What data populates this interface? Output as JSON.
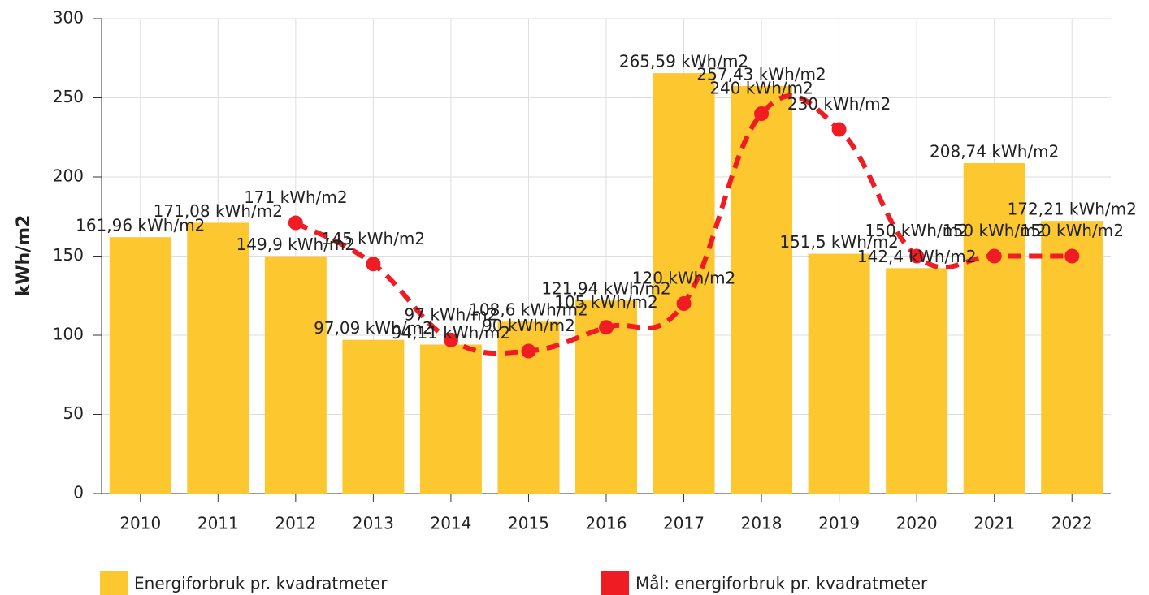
{
  "chart_data": {
    "type": "bar",
    "y_label": "kWh/m2",
    "categories": [
      "2010",
      "2011",
      "2012",
      "2013",
      "2014",
      "2015",
      "2016",
      "2017",
      "2018",
      "2019",
      "2020",
      "2021",
      "2022"
    ],
    "series": [
      {
        "name": "Energiforbruk pr. kvadratmeter",
        "type": "bar",
        "color": "#fdc72f",
        "values": [
          161.96,
          171.08,
          149.9,
          97.09,
          94.11,
          108.6,
          121.94,
          265.59,
          257.43,
          151.5,
          142.4,
          208.74,
          172.21
        ],
        "value_labels": [
          "161,96 kWh/m2",
          "171,08 kWh/m2",
          "149,9 kWh/m2",
          "97,09 kWh/m2",
          "94,11 kWh/m2",
          "108,6 kWh/m2",
          "121,94 kWh/m2",
          "265,59 kWh/m2",
          "257,43 kWh/m2",
          "151,5 kWh/m2",
          "142,4 kWh/m2",
          "208,74 kWh/m2",
          "172,21 kWh/m2"
        ]
      },
      {
        "name": "Mål: energiforbruk pr. kvadratmeter",
        "type": "line",
        "color": "#f01c24",
        "values": [
          null,
          null,
          171,
          145,
          97,
          90,
          105,
          120,
          240,
          230,
          150,
          150,
          150
        ],
        "value_labels": [
          null,
          null,
          "171 kWh/m2",
          "145 kWh/m2",
          "97 kWh/m2",
          "90 kWh/m2",
          "105 kWh/m2",
          "120 kWh/m2",
          "240 kWh/m2",
          "230 kWh/m2",
          "150 kWh/m2",
          "150 kWh/m2",
          "150 kWh/m2"
        ]
      }
    ],
    "ylim": [
      0,
      300
    ],
    "yticks": [
      0,
      50,
      100,
      150,
      200,
      250,
      300
    ],
    "grid": true
  }
}
